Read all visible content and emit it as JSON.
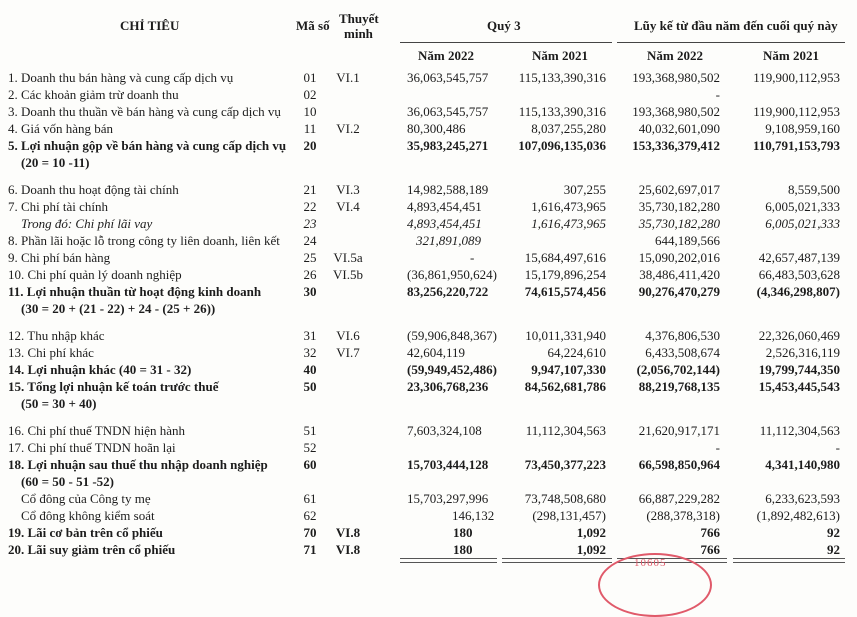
{
  "header": {
    "indicator": "CHỈ TIÊU",
    "code": "Mã số",
    "note_line1": "Thuyết",
    "note_line2": "minh",
    "quarter_group": "Quý 3",
    "ytd_group": "Lũy kế từ đầu năm đến cuối quý này",
    "cols": [
      "Năm 2022",
      "Năm 2021",
      "Năm 2022",
      "Năm 2021"
    ]
  },
  "rows": [
    {
      "style": "normal",
      "label": "1. Doanh thu bán hàng và cung cấp dịch vụ",
      "code": "01",
      "note": "VI.1",
      "values": [
        "36,063,545,757",
        "115,133,390,316",
        "193,368,980,502",
        "119,900,112,953"
      ]
    },
    {
      "style": "normal",
      "label": "2. Các khoản giảm trừ doanh thu",
      "code": "02",
      "note": "",
      "values": [
        "",
        "",
        "-",
        ""
      ]
    },
    {
      "style": "normal",
      "label": "3. Doanh thu thuần về bán hàng và cung cấp dịch vụ",
      "code": "10",
      "note": "",
      "values": [
        "36,063,545,757",
        "115,133,390,316",
        "193,368,980,502",
        "119,900,112,953"
      ]
    },
    {
      "style": "normal",
      "label": "4. Giá vốn hàng bán",
      "code": "11",
      "note": "VI.2",
      "values": [
        "80,300,486",
        "8,037,255,280",
        "40,032,601,090",
        "9,108,959,160"
      ]
    },
    {
      "style": "bold",
      "label": "5. Lợi nhuận gộp về bán hàng và cung cấp dịch vụ",
      "code": "20",
      "note": "",
      "values": [
        "35,983,245,271",
        "107,096,135,036",
        "153,336,379,412",
        "110,791,153,793"
      ]
    },
    {
      "style": "bold",
      "label": "    (20 = 10 -11)",
      "code": "",
      "note": "",
      "values": [
        "",
        "",
        "",
        ""
      ]
    },
    {
      "style": "spacer"
    },
    {
      "style": "normal",
      "label": "6. Doanh thu hoạt động tài chính",
      "code": "21",
      "note": "VI.3",
      "values": [
        "14,982,588,189",
        "307,255",
        "25,602,697,017",
        "8,559,500"
      ]
    },
    {
      "style": "normal",
      "label": "7. Chi phí tài chính",
      "code": "22",
      "note": "VI.4",
      "values": [
        "4,893,454,451",
        "1,616,473,965",
        "35,730,182,280",
        "6,005,021,333"
      ]
    },
    {
      "style": "italic",
      "label": "    Trong đó: Chi phí lãi vay",
      "code": "23",
      "note": "",
      "values": [
        "4,893,454,451",
        "1,616,473,965",
        "35,730,182,280",
        "6,005,021,333"
      ]
    },
    {
      "style": "normal",
      "label": "8. Phần lãi hoặc lỗ trong công ty liên doanh, liên kết",
      "code": "24",
      "note": "",
      "values": [
        "321,891,089",
        "",
        "644,189,566",
        ""
      ],
      "italic_first": true
    },
    {
      "style": "normal",
      "label": "9. Chi phí bán hàng",
      "code": "25",
      "note": "VI.5a",
      "values": [
        "-",
        "15,684,497,616",
        "15,090,202,016",
        "42,657,487,139"
      ]
    },
    {
      "style": "normal",
      "label": "10. Chi phí quản lý doanh nghiệp",
      "code": "26",
      "note": "VI.5b",
      "values": [
        "(36,861,950,624)",
        "15,179,896,254",
        "38,486,411,420",
        "66,483,503,628"
      ]
    },
    {
      "style": "bold",
      "label": "11. Lợi nhuận thuần từ hoạt động kinh doanh",
      "code": "30",
      "note": "",
      "values": [
        "83,256,220,722",
        "74,615,574,456",
        "90,276,470,279",
        "(4,346,298,807)"
      ]
    },
    {
      "style": "bold",
      "label": "    (30 = 20 + (21 - 22) + 24 - (25 + 26))",
      "code": "",
      "note": "",
      "values": [
        "",
        "",
        "",
        ""
      ]
    },
    {
      "style": "spacer"
    },
    {
      "style": "normal",
      "label": "12. Thu nhập khác",
      "code": "31",
      "note": "VI.6",
      "values": [
        "(59,906,848,367)",
        "10,011,331,940",
        "4,376,806,530",
        "22,326,060,469"
      ]
    },
    {
      "style": "normal",
      "label": "13. Chi phí khác",
      "code": "32",
      "note": "VI.7",
      "values": [
        "42,604,119",
        "64,224,610",
        "6,433,508,674",
        "2,526,316,119"
      ]
    },
    {
      "style": "bold",
      "label": "14. Lợi nhuận khác (40 = 31 - 32)",
      "code": "40",
      "note": "",
      "values": [
        "(59,949,452,486)",
        "9,947,107,330",
        "(2,056,702,144)",
        "19,799,744,350"
      ]
    },
    {
      "style": "bold",
      "label": "15. Tổng lợi nhuận kế toán trước thuế",
      "code": "50",
      "note": "",
      "values": [
        "23,306,768,236",
        "84,562,681,786",
        "88,219,768,135",
        "15,453,445,543"
      ]
    },
    {
      "style": "bold",
      "label": "    (50 = 30 + 40)",
      "code": "",
      "note": "",
      "values": [
        "",
        "",
        "",
        ""
      ]
    },
    {
      "style": "spacer"
    },
    {
      "style": "normal",
      "label": "16. Chi phí thuế TNDN hiện hành",
      "code": "51",
      "note": "",
      "values": [
        "7,603,324,108",
        "11,112,304,563",
        "21,620,917,171",
        "11,112,304,563"
      ]
    },
    {
      "style": "normal",
      "label": "17. Chi phí thuế TNDN hoãn lại",
      "code": "52",
      "note": "",
      "values": [
        "",
        "",
        "-",
        "-"
      ]
    },
    {
      "style": "bold",
      "label": "18. Lợi nhuận sau thuế thu nhập doanh nghiệp",
      "code": "60",
      "note": "",
      "values": [
        "15,703,444,128",
        "73,450,377,223",
        "66,598,850,964",
        "4,341,140,980"
      ]
    },
    {
      "style": "bold",
      "label": "    (60 = 50 - 51 -52)",
      "code": "",
      "note": "",
      "values": [
        "",
        "",
        "",
        ""
      ]
    },
    {
      "style": "normal",
      "label": "    Cổ đông của Công ty mẹ",
      "code": "61",
      "note": "",
      "values": [
        "15,703,297,996",
        "73,748,508,680",
        "66,887,229,282",
        "6,233,623,593"
      ]
    },
    {
      "style": "normal",
      "label": "    Cổ đông không kiểm soát",
      "code": "62",
      "note": "",
      "values": [
        "146,132",
        "(298,131,457)",
        "(288,378,318)",
        "(1,892,482,613)"
      ]
    },
    {
      "style": "bold",
      "label": "19. Lãi cơ bản trên cổ phiếu",
      "code": "70",
      "note": "VI.8",
      "values": [
        "180",
        "1,092",
        "766",
        "92"
      ]
    },
    {
      "style": "bold",
      "label": "20. Lãi suy giảm trên cổ phiếu",
      "code": "71",
      "note": "VI.8",
      "values": [
        "180",
        "1,092",
        "766",
        "92"
      ]
    }
  ],
  "stamp": {
    "text": "10605",
    "color": "#e05a6a"
  }
}
